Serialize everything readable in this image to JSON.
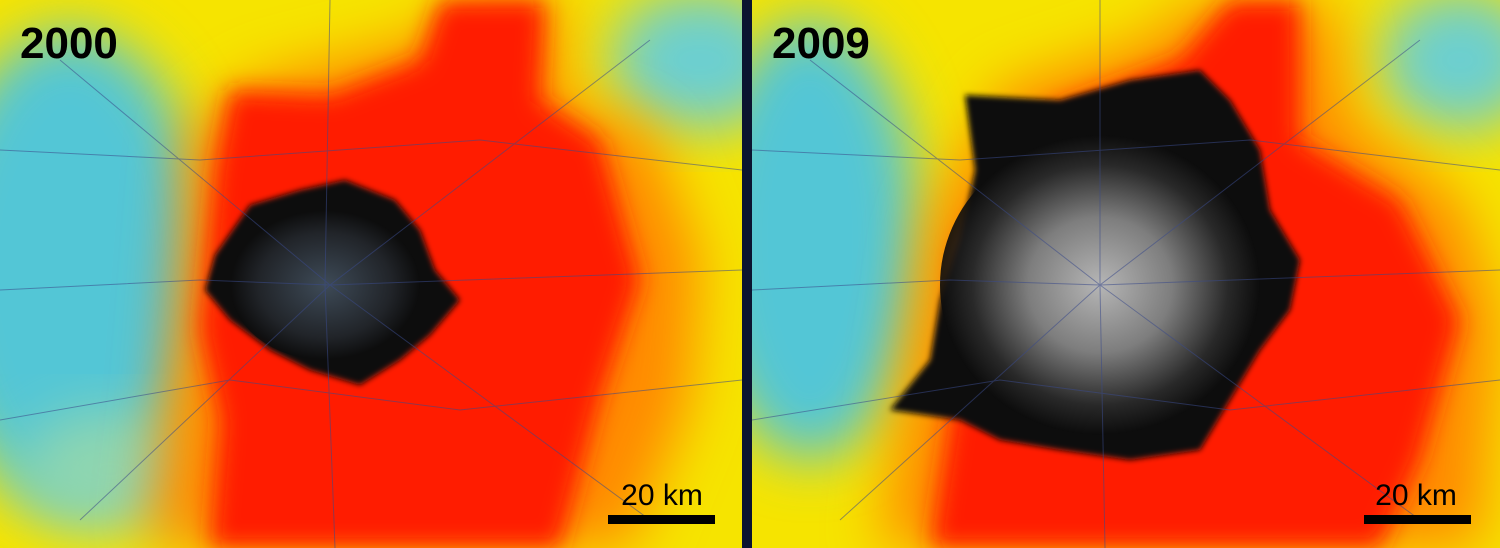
{
  "panels": [
    {
      "year": "2000",
      "scale_label": "20 km"
    },
    {
      "year": "2009",
      "scale_label": "20 km"
    }
  ]
}
